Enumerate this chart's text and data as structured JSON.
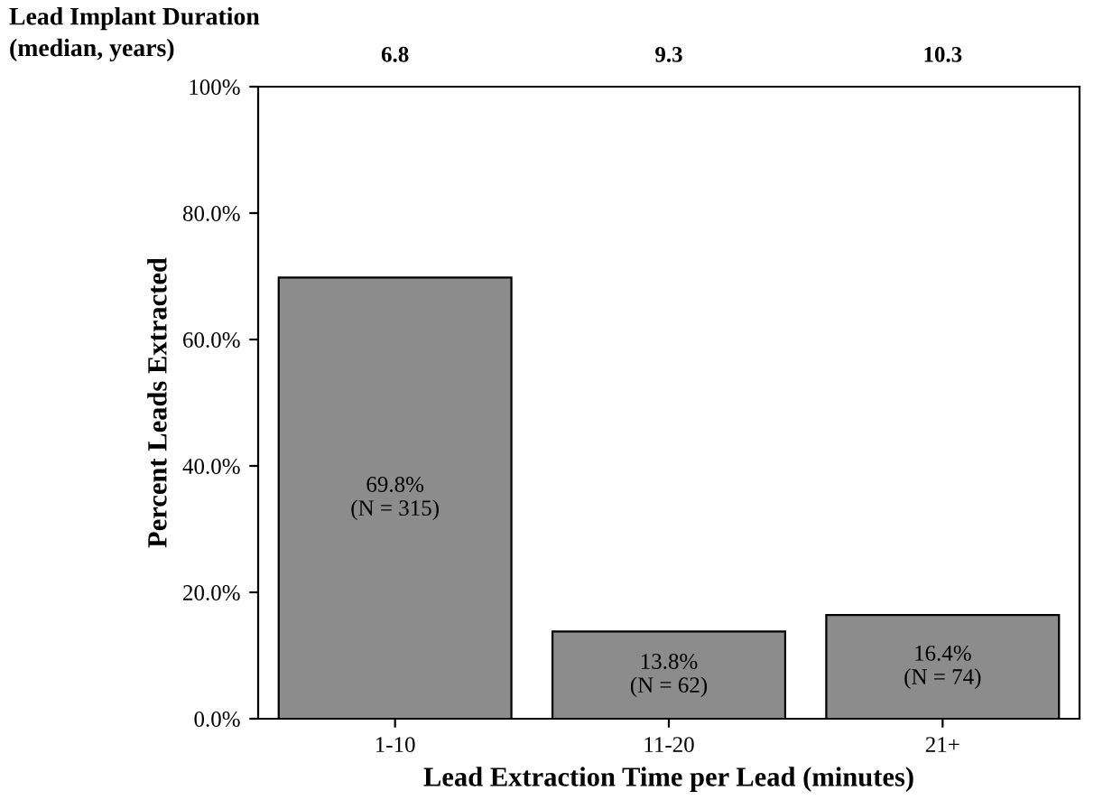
{
  "chart_data": {
    "type": "bar",
    "categories": [
      "1-10",
      "11-20",
      "21+"
    ],
    "values": [
      69.8,
      13.8,
      16.4
    ],
    "value_labels": [
      "69.8%\n(N = 315)",
      "13.8%\n(N = 62)",
      "16.4%\n(N = 74)"
    ],
    "color": "#8c8c8c",
    "xlabel": "Lead Extraction Time per Lead (minutes)",
    "ylabel": "Percent Leads Extracted",
    "ylim": [
      0,
      100
    ],
    "yticks": [
      {
        "value": 0,
        "label": "0.0%"
      },
      {
        "value": 20,
        "label": "20.0%"
      },
      {
        "value": 40,
        "label": "40.0%"
      },
      {
        "value": 60,
        "label": "60.0%"
      },
      {
        "value": 80,
        "label": "80.0%"
      },
      {
        "value": 100,
        "label": "100%"
      }
    ],
    "grid": false,
    "annotations": [
      "Lead Implant Duration\n(median, years)",
      "6.8",
      "9.3",
      "10.3"
    ]
  }
}
